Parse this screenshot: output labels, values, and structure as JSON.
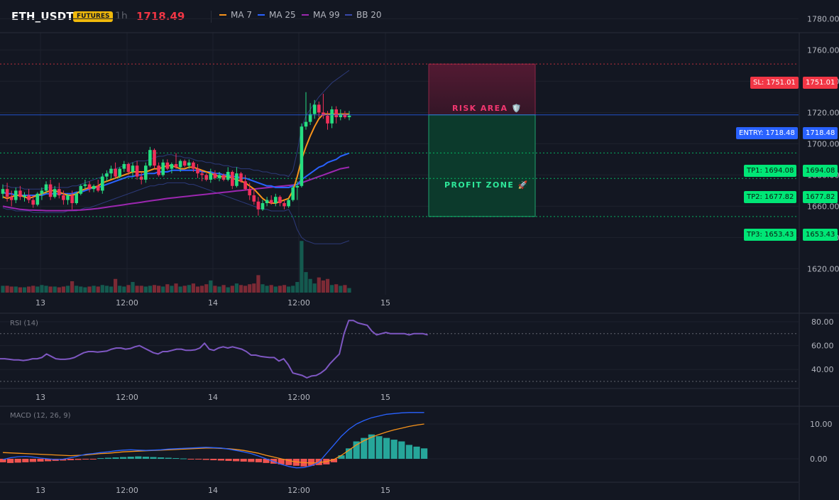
{
  "header": {
    "symbol": "ETH_USDT",
    "badge": "FUTURES",
    "timeframe": "1h",
    "last_price": "1718.49",
    "legend": [
      {
        "label": "MA 7",
        "color": "#f7931a"
      },
      {
        "label": "MA 25",
        "color": "#2962ff"
      },
      {
        "label": "MA 99",
        "color": "#9c27b0"
      },
      {
        "label": "BB 20",
        "color": "#3949ab"
      }
    ]
  },
  "levels": {
    "sl": {
      "label": "SL: 1751.01",
      "value": "1751.01",
      "color": "#f23645"
    },
    "entry": {
      "label": "ENTRY: 1718.48",
      "value": "1718.48",
      "color": "#2962ff"
    },
    "tp1": {
      "label": "TP1: 1694.08",
      "value": "1694.08",
      "color": "#00e676"
    },
    "tp2": {
      "label": "TP2: 1677.82",
      "value": "1677.82",
      "color": "#00e676"
    },
    "tp3": {
      "label": "TP3: 1653.43",
      "value": "1653.43",
      "color": "#00e676"
    }
  },
  "zones": {
    "risk": "RISK AREA 🛡️",
    "profit": "PROFIT ZONE 🚀"
  },
  "rsi": {
    "title": "RSI (14)"
  },
  "macd": {
    "title": "MACD (12, 26, 9)"
  },
  "chart_data": [
    {
      "type": "candlestick",
      "title": "ETH_USDT 1h",
      "y_ticks": [
        "1780.00",
        "1760.00",
        "1740.00",
        "1720.00",
        "1700.00",
        "1680.00",
        "1660.00",
        "1640.00",
        "1620.00"
      ],
      "ylim": [
        1612,
        1782
      ],
      "x_ticks": [
        "13",
        "12:00",
        "14",
        "12:00",
        "15"
      ],
      "candles": [
        [
          1668,
          1674,
          1665,
          1671
        ],
        [
          1671,
          1675,
          1663,
          1666
        ],
        [
          1666,
          1670,
          1660,
          1664
        ],
        [
          1664,
          1672,
          1662,
          1670
        ],
        [
          1670,
          1673,
          1664,
          1666
        ],
        [
          1666,
          1669,
          1663,
          1667
        ],
        [
          1667,
          1671,
          1662,
          1664
        ],
        [
          1664,
          1667,
          1659,
          1661
        ],
        [
          1661,
          1669,
          1660,
          1668
        ],
        [
          1668,
          1672,
          1664,
          1670
        ],
        [
          1670,
          1676,
          1668,
          1674
        ],
        [
          1674,
          1677,
          1664,
          1666
        ],
        [
          1666,
          1673,
          1665,
          1671
        ],
        [
          1671,
          1675,
          1665,
          1667
        ],
        [
          1667,
          1670,
          1661,
          1664
        ],
        [
          1664,
          1668,
          1661,
          1667
        ],
        [
          1667,
          1670,
          1658,
          1662
        ],
        [
          1662,
          1669,
          1661,
          1668
        ],
        [
          1668,
          1674,
          1667,
          1673
        ],
        [
          1673,
          1677,
          1671,
          1674
        ],
        [
          1674,
          1676,
          1669,
          1671
        ],
        [
          1671,
          1674,
          1669,
          1673
        ],
        [
          1673,
          1677,
          1669,
          1670
        ],
        [
          1670,
          1681,
          1668,
          1679
        ],
        [
          1679,
          1683,
          1676,
          1681
        ],
        [
          1681,
          1686,
          1678,
          1684
        ],
        [
          1684,
          1688,
          1678,
          1679
        ],
        [
          1679,
          1685,
          1678,
          1684
        ],
        [
          1684,
          1689,
          1682,
          1687
        ],
        [
          1687,
          1688,
          1680,
          1682
        ],
        [
          1682,
          1688,
          1679,
          1686
        ],
        [
          1686,
          1689,
          1677,
          1679
        ],
        [
          1679,
          1682,
          1674,
          1677
        ],
        [
          1677,
          1688,
          1675,
          1686
        ],
        [
          1686,
          1698,
          1685,
          1696
        ],
        [
          1696,
          1697,
          1684,
          1686
        ],
        [
          1686,
          1688,
          1679,
          1680
        ],
        [
          1680,
          1690,
          1679,
          1688
        ],
        [
          1688,
          1690,
          1683,
          1684
        ],
        [
          1684,
          1688,
          1681,
          1687
        ],
        [
          1687,
          1694,
          1684,
          1685
        ],
        [
          1685,
          1690,
          1682,
          1689
        ],
        [
          1689,
          1690,
          1685,
          1686
        ],
        [
          1686,
          1690,
          1684,
          1688
        ],
        [
          1688,
          1689,
          1682,
          1684
        ],
        [
          1684,
          1687,
          1678,
          1681
        ],
        [
          1681,
          1683,
          1676,
          1680
        ],
        [
          1680,
          1681,
          1676,
          1677
        ],
        [
          1677,
          1684,
          1675,
          1681
        ],
        [
          1681,
          1683,
          1677,
          1678
        ],
        [
          1678,
          1682,
          1676,
          1680
        ],
        [
          1680,
          1681,
          1676,
          1677
        ],
        [
          1677,
          1685,
          1676,
          1682
        ],
        [
          1682,
          1683,
          1671,
          1673
        ],
        [
          1673,
          1685,
          1672,
          1681
        ],
        [
          1681,
          1682,
          1675,
          1676
        ],
        [
          1676,
          1680,
          1670,
          1671
        ],
        [
          1671,
          1675,
          1664,
          1667
        ],
        [
          1667,
          1671,
          1661,
          1663
        ],
        [
          1663,
          1666,
          1654,
          1658
        ],
        [
          1658,
          1664,
          1657,
          1662
        ],
        [
          1662,
          1666,
          1660,
          1664
        ],
        [
          1664,
          1667,
          1661,
          1662
        ],
        [
          1662,
          1668,
          1660,
          1666
        ],
        [
          1666,
          1667,
          1660,
          1662
        ],
        [
          1662,
          1664,
          1658,
          1660
        ],
        [
          1660,
          1665,
          1659,
          1664
        ],
        [
          1664,
          1673,
          1663,
          1672
        ],
        [
          1672,
          1676,
          1664,
          1673
        ],
        [
          1673,
          1713,
          1672,
          1711
        ],
        [
          1711,
          1733,
          1709,
          1714
        ],
        [
          1714,
          1726,
          1712,
          1719
        ],
        [
          1719,
          1728,
          1716,
          1725
        ],
        [
          1725,
          1727,
          1717,
          1720
        ],
        [
          1720,
          1732,
          1716,
          1718
        ],
        [
          1718,
          1721,
          1709,
          1713
        ],
        [
          1713,
          1724,
          1710,
          1722
        ],
        [
          1722,
          1724,
          1713,
          1717
        ],
        [
          1717,
          1722,
          1715,
          1719
        ],
        [
          1719,
          1721,
          1716,
          1717
        ],
        [
          1717,
          1721,
          1715,
          1718
        ]
      ],
      "volume": [
        9,
        9,
        8,
        8,
        7,
        7,
        8,
        9,
        8,
        10,
        9,
        8,
        8,
        7,
        8,
        9,
        15,
        9,
        8,
        7,
        8,
        9,
        8,
        10,
        9,
        8,
        18,
        9,
        8,
        10,
        14,
        9,
        9,
        8,
        9,
        10,
        9,
        8,
        11,
        9,
        12,
        8,
        9,
        10,
        12,
        8,
        9,
        11,
        16,
        9,
        8,
        10,
        7,
        9,
        12,
        10,
        9,
        11,
        12,
        23,
        11,
        9,
        10,
        8,
        9,
        10,
        8,
        9,
        14,
        68,
        27,
        18,
        12,
        20,
        16,
        18,
        10,
        11,
        9,
        10,
        6
      ],
      "ma7": [
        1666,
        1665,
        1666,
        1667,
        1667,
        1666,
        1665,
        1666,
        1667,
        1668,
        1669,
        1670,
        1670,
        1669,
        1668,
        1667,
        1667,
        1668,
        1670,
        1671,
        1672,
        1672,
        1673,
        1675,
        1676,
        1677,
        1678,
        1679,
        1680,
        1681,
        1682,
        1682,
        1682,
        1682,
        1683,
        1684,
        1684,
        1685,
        1686,
        1686,
        1685,
        1684,
        1684,
        1685,
        1685,
        1684,
        1683,
        1682,
        1681,
        1680,
        1679,
        1679,
        1679,
        1678,
        1677,
        1676,
        1675,
        1673,
        1671,
        1668,
        1665,
        1663,
        1662,
        1662,
        1663,
        1664,
        1665,
        1670,
        1679,
        1690,
        1698,
        1705,
        1711,
        1716,
        1719,
        1719,
        1719,
        1719,
        1719,
        1719,
        1719
      ],
      "ma25": [
        1669,
        1668,
        1668,
        1667,
        1667,
        1667,
        1667,
        1667,
        1667,
        1667,
        1668,
        1668,
        1668,
        1668,
        1668,
        1668,
        1668,
        1669,
        1669,
        1670,
        1671,
        1672,
        1672,
        1673,
        1674,
        1675,
        1676,
        1677,
        1678,
        1679,
        1679,
        1680,
        1680,
        1681,
        1681,
        1681,
        1682,
        1682,
        1682,
        1683,
        1683,
        1683,
        1683,
        1683,
        1683,
        1683,
        1682,
        1682,
        1682,
        1681,
        1681,
        1680,
        1680,
        1679,
        1679,
        1678,
        1678,
        1677,
        1676,
        1675,
        1674,
        1673,
        1673,
        1672,
        1672,
        1672,
        1672,
        1673,
        1674,
        1677,
        1679,
        1681,
        1683,
        1685,
        1686,
        1688,
        1689,
        1690,
        1692,
        1693,
        1694
      ],
      "ma99": [
        1660,
        1659.5,
        1659,
        1658.5,
        1658,
        1657.8,
        1657.6,
        1657.5,
        1657.4,
        1657.3,
        1657.2,
        1657.2,
        1657.2,
        1657.2,
        1657.2,
        1657.3,
        1657.4,
        1657.5,
        1657.6,
        1657.8,
        1658,
        1658.3,
        1658.6,
        1659,
        1659.4,
        1659.8,
        1660.2,
        1660.6,
        1661,
        1661.4,
        1661.8,
        1662.2,
        1662.6,
        1663,
        1663.4,
        1663.8,
        1664.2,
        1664.6,
        1665,
        1665.3,
        1665.6,
        1665.9,
        1666.2,
        1666.5,
        1666.8,
        1667.1,
        1667.4,
        1667.7,
        1668,
        1668.3,
        1668.6,
        1668.9,
        1669.2,
        1669.5,
        1669.8,
        1670.1,
        1670.4,
        1670.7,
        1671,
        1671.3,
        1671.6,
        1671.9,
        1672.2,
        1672.5,
        1672.8,
        1673,
        1673.3,
        1673.6,
        1674,
        1675,
        1676,
        1677,
        1678,
        1679,
        1680,
        1681,
        1682,
        1683,
        1684,
        1684.5,
        1685
      ],
      "bb_upper": [
        1673,
        1673,
        1672,
        1672,
        1672,
        1671,
        1671,
        1671,
        1671,
        1671,
        1672,
        1672,
        1672,
        1672,
        1672,
        1672,
        1673,
        1673,
        1674,
        1675,
        1676,
        1677,
        1678,
        1679,
        1681,
        1683,
        1684,
        1685,
        1686,
        1687,
        1688,
        1689,
        1689,
        1689,
        1690,
        1691,
        1692,
        1692,
        1693,
        1693,
        1692,
        1692,
        1691,
        1691,
        1690,
        1689,
        1689,
        1688,
        1688,
        1687,
        1687,
        1686,
        1686,
        1685,
        1685,
        1684,
        1684,
        1684,
        1683,
        1683,
        1682,
        1682,
        1681,
        1681,
        1680,
        1680,
        1679,
        1683,
        1695,
        1710,
        1718,
        1722,
        1726,
        1730,
        1733,
        1736,
        1739,
        1741,
        1743,
        1745,
        1747
      ],
      "bb_lower": [
        1659,
        1658,
        1658,
        1657,
        1657,
        1657,
        1657,
        1656,
        1656,
        1656,
        1656,
        1656,
        1656,
        1656,
        1656,
        1657,
        1657,
        1657,
        1658,
        1659,
        1659,
        1660,
        1661,
        1662,
        1663,
        1664,
        1665,
        1666,
        1667,
        1668,
        1669,
        1670,
        1671,
        1672,
        1673,
        1673,
        1674,
        1674,
        1675,
        1675,
        1675,
        1675,
        1675,
        1674,
        1674,
        1673,
        1672,
        1671,
        1670,
        1669,
        1668,
        1667,
        1666,
        1665,
        1664,
        1663,
        1662,
        1661,
        1660,
        1659,
        1658,
        1658,
        1657,
        1657,
        1657,
        1657,
        1658,
        1653,
        1645,
        1640,
        1638,
        1637,
        1636,
        1636,
        1636,
        1636,
        1636,
        1636,
        1636,
        1637,
        1638
      ]
    },
    {
      "type": "line",
      "title": "RSI (14)",
      "y_ticks": [
        "80.00",
        "60.00",
        "40.00"
      ],
      "ylim": [
        29,
        89
      ],
      "levels": [
        70,
        30
      ],
      "values": [
        49,
        49,
        48.5,
        48,
        48,
        47.5,
        48,
        49,
        49,
        50,
        53,
        51,
        49,
        48.5,
        48.5,
        49,
        50,
        52,
        54,
        55,
        55,
        54.5,
        55,
        55.5,
        57,
        58,
        58,
        57,
        57.5,
        59,
        60,
        58,
        56,
        54,
        53,
        55,
        55,
        56,
        57,
        57,
        56,
        56,
        56.5,
        58,
        62,
        57,
        56,
        58,
        59,
        58,
        59,
        58,
        57,
        55,
        52,
        52,
        51,
        50.5,
        50,
        50,
        47,
        49,
        44,
        37,
        36,
        35,
        33,
        34.5,
        35,
        37,
        40,
        45,
        49,
        53,
        70,
        81,
        81,
        79,
        78,
        77,
        72,
        69,
        70,
        71,
        70,
        70,
        70,
        70,
        69,
        70,
        70,
        70,
        69
      ]
    },
    {
      "type": "bar",
      "title": "MACD (12, 26, 9)",
      "y_ticks": [
        "10.00",
        "0.00"
      ],
      "ylim": [
        -4,
        14
      ],
      "histogram": [
        -1,
        -1.2,
        -1.1,
        -1,
        -0.9,
        -0.8,
        -0.7,
        -0.6,
        -0.5,
        -0.4,
        -0.3,
        -0.2,
        -0.1,
        0.2,
        0.3,
        0.4,
        0.5,
        0.6,
        0.7,
        0.6,
        0.5,
        0.4,
        0.3,
        0.2,
        0.1,
        -0.1,
        -0.2,
        -0.3,
        -0.4,
        -0.5,
        -0.6,
        -0.7,
        -0.8,
        -0.9,
        -1,
        -1.2,
        -1.4,
        -1.6,
        -1.8,
        -2,
        -2.2,
        -2,
        -1.8,
        -1.6,
        -1,
        1,
        3,
        5,
        6,
        7,
        6.5,
        6,
        5.5,
        5,
        4,
        3.5,
        3
      ],
      "macd_line": [
        -0.2,
        0.3,
        0.6,
        0.7,
        0.5,
        0.2,
        0,
        -0.2,
        -0.1,
        0.3,
        0.8,
        1.3,
        1.5,
        1.8,
        2,
        2.3,
        2.5,
        2.6,
        2.5,
        2.4,
        2.5,
        2.6,
        2.8,
        2.9,
        3,
        3.1,
        3.2,
        3.3,
        3.2,
        3.1,
        2.8,
        2.4,
        2,
        1.5,
        0.8,
        0,
        -0.8,
        -1.6,
        -2.2,
        -2.6,
        -2.5,
        -2,
        -1,
        1.5,
        4,
        6.5,
        8.5,
        10,
        11,
        11.8,
        12.3,
        12.8,
        13,
        13.2,
        13.3,
        13.3,
        13.3
      ],
      "signal_line": [
        1.8,
        1.7,
        1.6,
        1.5,
        1.4,
        1.3,
        1.2,
        1.1,
        1,
        0.9,
        1,
        1.1,
        1.3,
        1.5,
        1.6,
        1.8,
        2,
        2.1,
        2.2,
        2.3,
        2.4,
        2.5,
        2.6,
        2.7,
        2.8,
        2.9,
        3,
        3.1,
        3.1,
        3,
        2.9,
        2.7,
        2.4,
        2,
        1.6,
        1,
        0.5,
        0,
        -0.5,
        -0.9,
        -1.1,
        -1.2,
        -1.1,
        -0.8,
        -0.2,
        1,
        2.5,
        4,
        5.2,
        6.2,
        7,
        7.7,
        8.3,
        8.8,
        9.3,
        9.7,
        10
      ]
    }
  ]
}
